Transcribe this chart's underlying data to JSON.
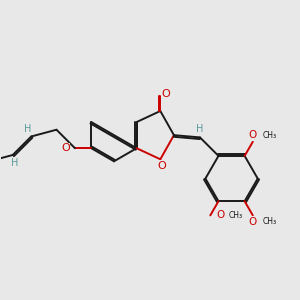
{
  "bg_color": "#e8e8e8",
  "bond_color": "#1a1a1a",
  "O_color": "#cc0000",
  "H_color": "#5a9999",
  "bond_lw": 1.4,
  "figsize": [
    3.0,
    3.0
  ],
  "dpi": 100,
  "xlim": [
    0,
    10
  ],
  "ylim": [
    0,
    10
  ]
}
